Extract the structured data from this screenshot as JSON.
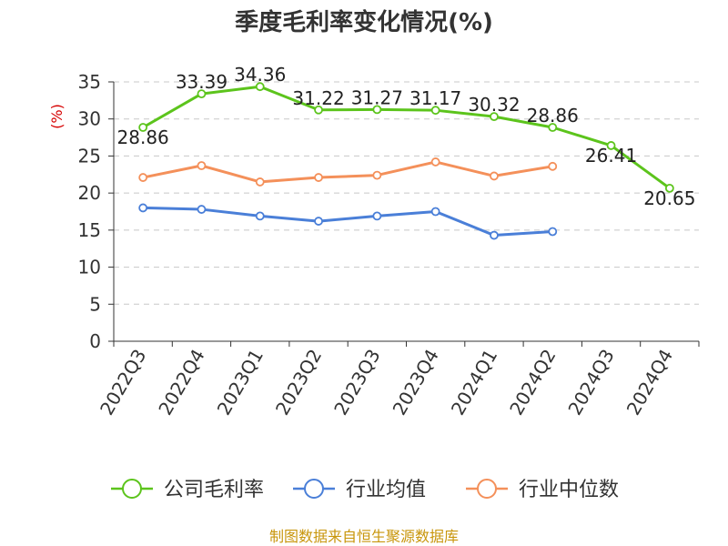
{
  "chart_data": {
    "type": "line",
    "title": "季度毛利率变化情况(%)",
    "ylabel": "(%)",
    "ylim": [
      0,
      35
    ],
    "yticks": [
      0,
      5,
      10,
      15,
      20,
      25,
      30,
      35
    ],
    "grid": true,
    "legend_position": "bottom",
    "categories": [
      "2022Q3",
      "2022Q4",
      "2023Q1",
      "2023Q2",
      "2023Q3",
      "2023Q4",
      "2024Q1",
      "2024Q2",
      "2024Q3",
      "2024Q4"
    ],
    "series": [
      {
        "name": "公司毛利率",
        "color": "#5cc41c",
        "values": [
          28.86,
          33.39,
          34.36,
          31.22,
          31.27,
          31.17,
          30.32,
          28.86,
          26.41,
          20.65
        ],
        "labels": [
          "28.86",
          "33.39",
          "34.36",
          "31.22",
          "31.27",
          "31.17",
          "30.32",
          "28.86",
          "26.41",
          "20.65"
        ]
      },
      {
        "name": "行业均值",
        "color": "#4a7fd8",
        "values": [
          18.0,
          17.8,
          16.9,
          16.2,
          16.9,
          17.5,
          14.3,
          14.8,
          null,
          null
        ]
      },
      {
        "name": "行业中位数",
        "color": "#f4905a",
        "values": [
          22.1,
          23.7,
          21.5,
          22.1,
          22.4,
          24.2,
          22.3,
          23.6,
          null,
          null
        ]
      }
    ],
    "source": "制图数据来自恒生聚源数据库"
  }
}
